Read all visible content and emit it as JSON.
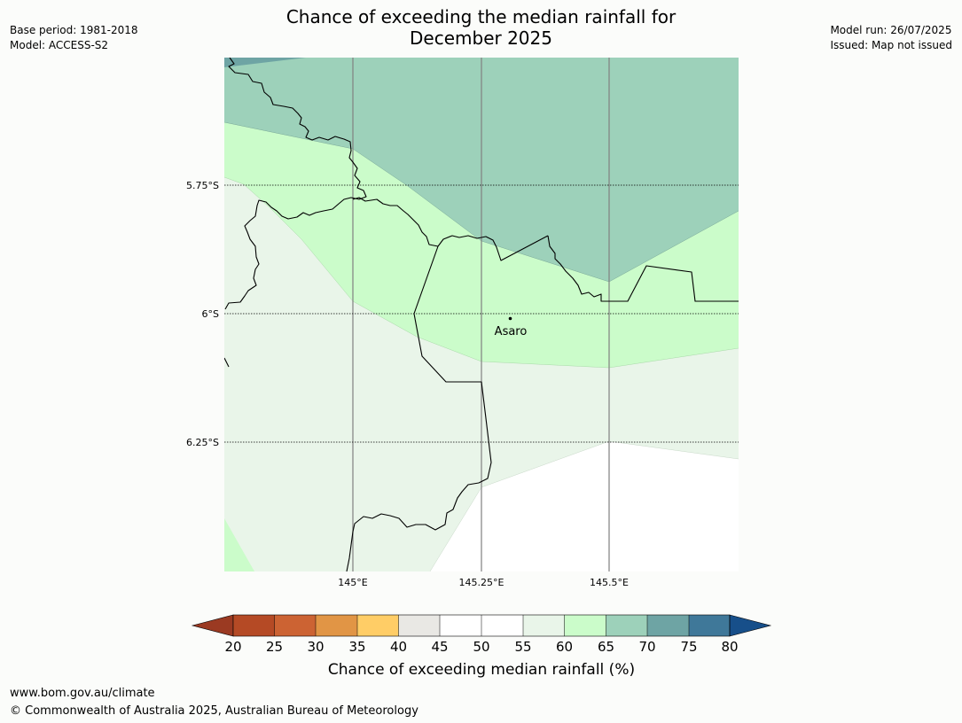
{
  "header": {
    "title_line1": "Chance of exceeding the median rainfall for",
    "title_line2": "December 2025",
    "base_period": "Base period: 1981-2018",
    "model": "Model: ACCESS-S2",
    "model_run": "Model run: 26/07/2025",
    "issued": "Issued: Map not issued"
  },
  "map": {
    "lat_labels": [
      "5.75°S",
      "6°S",
      "6.25°S"
    ],
    "lon_labels": [
      "145°E",
      "145.25°E",
      "145.5°E"
    ],
    "place": {
      "name": "Asaro"
    },
    "colors": {
      "c30_35": "#e19545",
      "c35_40": "#ffcd66",
      "c40_45": "#e9e8e4",
      "c45_55": "#ffffff",
      "c55_60": "#e9f5e9",
      "c60_65": "#cbfcca",
      "c65_70": "#9dd1ba",
      "c70_75": "#6ea4a4",
      "c75_80": "#3f7899",
      "above80": "#174f8a"
    }
  },
  "legend": {
    "title": "Chance of exceeding median rainfall (%)",
    "ticks": [
      "20",
      "25",
      "30",
      "35",
      "40",
      "45",
      "50",
      "55",
      "60",
      "65",
      "70",
      "75",
      "80"
    ],
    "colors": {
      "below20": "#9b3a22",
      "c20_25": "#b54a25",
      "c25_30": "#cc6333",
      "c30_35": "#e19545",
      "c35_40": "#ffcd66",
      "c40_45": "#e9e8e4",
      "c45_50": "#ffffff",
      "c50_55": "#ffffff",
      "c55_60": "#e9f5e9",
      "c60_65": "#cbfcca",
      "c65_70": "#9dd1ba",
      "c70_75": "#6ea4a4",
      "c75_80": "#3f7899",
      "above80": "#174f8a"
    }
  },
  "footer": {
    "url": "www.bom.gov.au/climate",
    "copyright": "© Commonwealth of Australia 2025, Australian Bureau of Meteorology"
  }
}
